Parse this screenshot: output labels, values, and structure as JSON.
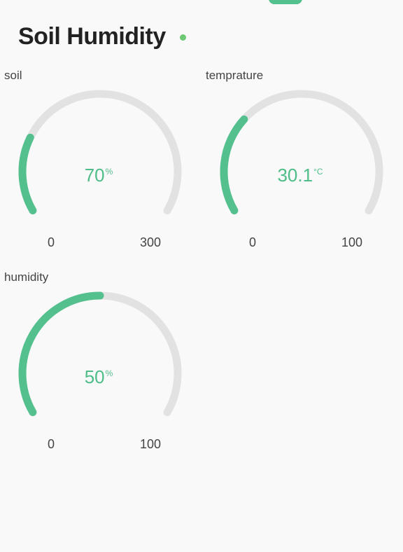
{
  "header": {
    "title": "Soil Humidity",
    "status_color": "#6cc872"
  },
  "colors": {
    "accent": "#53c08d",
    "track": "#e2e2e2"
  },
  "gauges": [
    {
      "label": "soil",
      "value": "70",
      "unit": "%",
      "min": "0",
      "max": "300",
      "fraction": 0.2333
    },
    {
      "label": "temprature",
      "value": "30.1",
      "unit": "°C",
      "min": "0",
      "max": "100",
      "fraction": 0.301
    },
    {
      "label": "humidity",
      "value": "50",
      "unit": "%",
      "min": "0",
      "max": "100",
      "fraction": 0.5
    }
  ]
}
